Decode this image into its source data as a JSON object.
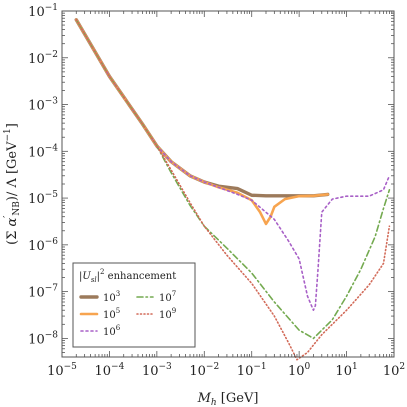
{
  "chart_data": {
    "type": "line",
    "xlabel": "M_h [GeV]",
    "ylabel": "(Σ α′_NB)/ Λ [GeV⁻¹]",
    "x_scale": "log",
    "y_scale": "log",
    "xlim": [
      1e-05,
      100
    ],
    "ylim": [
      4e-09,
      0.1
    ],
    "grid": false,
    "legend_position": "bottom-left",
    "legend_title": "|U_sl|² enhancement",
    "x_ticks": [
      {
        "value": 1e-05,
        "base": "10",
        "exp": "−5"
      },
      {
        "value": 0.0001,
        "base": "10",
        "exp": "−4"
      },
      {
        "value": 0.001,
        "base": "10",
        "exp": "−3"
      },
      {
        "value": 0.01,
        "base": "10",
        "exp": "−2"
      },
      {
        "value": 0.1,
        "base": "10",
        "exp": "−1"
      },
      {
        "value": 1,
        "base": "10",
        "exp": "0"
      },
      {
        "value": 10,
        "base": "10",
        "exp": "1"
      },
      {
        "value": 100,
        "base": "10",
        "exp": "2"
      }
    ],
    "y_ticks": [
      {
        "value": 0.1,
        "base": "10",
        "exp": "−1"
      },
      {
        "value": 0.01,
        "base": "10",
        "exp": "−2"
      },
      {
        "value": 0.001,
        "base": "10",
        "exp": "−3"
      },
      {
        "value": 0.0001,
        "base": "10",
        "exp": "−4"
      },
      {
        "value": 1e-05,
        "base": "10",
        "exp": "−5"
      },
      {
        "value": 1e-06,
        "base": "10",
        "exp": "−6"
      },
      {
        "value": 1e-07,
        "base": "10",
        "exp": "−7"
      },
      {
        "value": 1e-08,
        "base": "10",
        "exp": "−8"
      }
    ],
    "series": [
      {
        "name": "10³",
        "exp": "3",
        "color": "#9c7a5b",
        "dash": "solid",
        "x": [
          2e-05,
          0.0001,
          0.0005,
          0.001,
          0.002,
          0.005,
          0.01,
          0.02,
          0.05,
          0.1,
          0.2,
          0.5,
          1,
          2,
          4
        ],
        "y": [
          0.065,
          0.004,
          0.00038,
          0.00013,
          6e-05,
          3e-05,
          2.2e-05,
          1.8e-05,
          1.6e-05,
          1.15e-05,
          1.12e-05,
          1.12e-05,
          1.12e-05,
          1.12e-05,
          1.2e-05
        ]
      },
      {
        "name": "10⁵",
        "exp": "5",
        "color": "#f7a44f",
        "dash": "solid",
        "x": [
          2e-05,
          0.0001,
          0.0005,
          0.001,
          0.002,
          0.005,
          0.01,
          0.02,
          0.05,
          0.1,
          0.15,
          0.2,
          0.25,
          0.3,
          0.5,
          1,
          2,
          4
        ],
        "y": [
          0.065,
          0.004,
          0.00038,
          0.00013,
          6e-05,
          3e-05,
          2.2e-05,
          1.7e-05,
          1.3e-05,
          9e-06,
          5e-06,
          2.8e-06,
          4e-06,
          6.5e-06,
          9.5e-06,
          1.1e-05,
          1.12e-05,
          1.2e-05
        ]
      },
      {
        "name": "10⁶",
        "exp": "6",
        "color": "#a860c7",
        "dash": "2,3",
        "x": [
          2e-05,
          0.0001,
          0.0005,
          0.001,
          0.002,
          0.005,
          0.01,
          0.05,
          0.1,
          0.3,
          0.6,
          1,
          1.5,
          2,
          2.2,
          2.5,
          3,
          5,
          10,
          30,
          60,
          80
        ],
        "y": [
          0.065,
          0.004,
          0.00038,
          0.00013,
          6e-05,
          3e-05,
          2.2e-05,
          1.2e-05,
          9e-06,
          3.5e-06,
          1.2e-06,
          5e-07,
          8e-08,
          4e-08,
          5e-08,
          3e-07,
          5e-06,
          9.5e-06,
          1.1e-05,
          1.1e-05,
          1.5e-05,
          3e-05
        ]
      },
      {
        "name": "10⁷",
        "exp": "7",
        "color": "#74aa50",
        "dash": "6,3,1.5,3",
        "x": [
          2e-05,
          0.0001,
          0.0005,
          0.001,
          0.002,
          0.005,
          0.01,
          0.03,
          0.1,
          0.3,
          1,
          2,
          5,
          10,
          20,
          40,
          60,
          80
        ],
        "y": [
          0.065,
          0.004,
          0.00038,
          0.00013,
          3.5e-05,
          7e-06,
          2.5e-06,
          8.5e-07,
          2.5e-07,
          6e-08,
          1.5e-08,
          1e-08,
          2.5e-08,
          8e-08,
          3e-07,
          1.5e-06,
          6e-06,
          1.5e-05
        ]
      },
      {
        "name": "10⁹",
        "exp": "9",
        "color": "#d26a58",
        "dash": "1,2.5",
        "x": [
          2e-05,
          0.0001,
          0.0005,
          0.001,
          0.002,
          0.005,
          0.01,
          0.03,
          0.1,
          0.3,
          0.6,
          0.9,
          1.5,
          3,
          10,
          30,
          60,
          80
        ],
        "y": [
          0.065,
          0.004,
          0.00038,
          0.00013,
          4e-05,
          8e-06,
          2.5e-06,
          6e-07,
          1.5e-07,
          3e-08,
          8e-09,
          3.5e-09,
          5e-09,
          1.2e-08,
          4e-08,
          1.4e-07,
          4e-07,
          2.5e-06
        ]
      }
    ]
  }
}
